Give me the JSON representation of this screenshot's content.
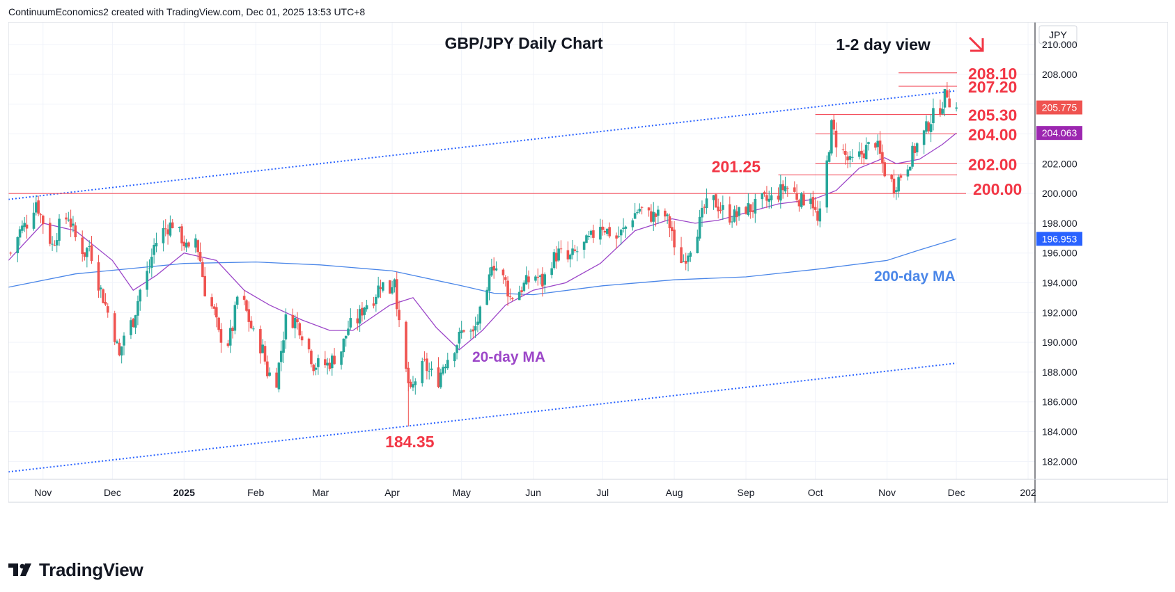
{
  "header": {
    "credit": "ContinuumEconomics2 created with TradingView.com, Dec 01, 2025 13:53 UTC+8"
  },
  "footer": {
    "brand": "TradingView",
    "logo_icon": "tradingview-logo-icon"
  },
  "colors": {
    "up": "#26a69a",
    "down": "#ef5350",
    "annotation_red": "#f23645",
    "ma20": "#9c46c8",
    "ma200": "#4a86e8",
    "trendline": "#2962ff",
    "price_badge": "#ef5350",
    "ma20_badge": "#9c27b0",
    "ma200_badge": "#2962ff"
  },
  "chart_data": {
    "type": "candlestick",
    "title": "GBP/JPY Daily Chart",
    "subtitle": "1-2 day view",
    "direction_icon": "arrow-down-right-icon",
    "currency": "JPY",
    "ylim": [
      180.8,
      211.5
    ],
    "y_ticks": [
      "210.000",
      "208.000",
      "206.000",
      "204.000",
      "202.000",
      "200.000",
      "198.000",
      "196.000",
      "194.000",
      "192.000",
      "190.000",
      "188.000",
      "186.000",
      "184.000",
      "182.000"
    ],
    "x_ticks": [
      {
        "label": "Nov",
        "date": "2024-11-01"
      },
      {
        "label": "Dec",
        "date": "2024-12-01"
      },
      {
        "label": "2025",
        "date": "2025-01-01"
      },
      {
        "label": "Feb",
        "date": "2025-02-01"
      },
      {
        "label": "Mar",
        "date": "2025-03-01"
      },
      {
        "label": "Apr",
        "date": "2025-04-01"
      },
      {
        "label": "May",
        "date": "2025-05-01"
      },
      {
        "label": "Jun",
        "date": "2025-06-01"
      },
      {
        "label": "Jul",
        "date": "2025-07-01"
      },
      {
        "label": "Aug",
        "date": "2025-08-01"
      },
      {
        "label": "Sep",
        "date": "2025-09-01"
      },
      {
        "label": "Oct",
        "date": "2025-10-01"
      },
      {
        "label": "Nov",
        "date": "2025-11-01"
      },
      {
        "label": "Dec",
        "date": "2025-12-01"
      },
      {
        "label": "202",
        "date": "2026-01-01"
      }
    ],
    "x_range": [
      "2024-10-17",
      "2026-01-04"
    ],
    "price_path": [
      [
        "2024-10-18",
        196.0
      ],
      [
        "2024-10-22",
        197.5
      ],
      [
        "2024-10-25",
        198.0
      ],
      [
        "2024-10-29",
        199.5
      ],
      [
        "2024-10-31",
        198.5
      ],
      [
        "2024-11-05",
        196.5
      ],
      [
        "2024-11-08",
        197.8
      ],
      [
        "2024-11-12",
        198.5
      ],
      [
        "2024-11-15",
        197.0
      ],
      [
        "2024-11-19",
        196.0
      ],
      [
        "2024-11-21",
        196.5
      ],
      [
        "2024-11-25",
        194.0
      ],
      [
        "2024-11-27",
        193.0
      ],
      [
        "2024-12-02",
        190.5
      ],
      [
        "2024-12-04",
        189.0
      ],
      [
        "2024-12-06",
        190.5
      ],
      [
        "2024-12-10",
        191.5
      ],
      [
        "2024-12-13",
        193.5
      ],
      [
        "2024-12-17",
        195.0
      ],
      [
        "2024-12-19",
        196.5
      ],
      [
        "2024-12-23",
        197.5
      ],
      [
        "2024-12-27",
        198.0
      ],
      [
        "2024-12-31",
        197.0
      ],
      [
        "2025-01-03",
        196.0
      ],
      [
        "2025-01-06",
        197.0
      ],
      [
        "2025-01-08",
        195.5
      ],
      [
        "2025-01-10",
        193.5
      ],
      [
        "2025-01-14",
        192.0
      ],
      [
        "2025-01-16",
        190.5
      ],
      [
        "2025-01-20",
        190.0
      ],
      [
        "2025-01-22",
        191.0
      ],
      [
        "2025-01-24",
        193.0
      ],
      [
        "2025-01-27",
        192.5
      ],
      [
        "2025-01-29",
        191.5
      ],
      [
        "2025-01-31",
        190.5
      ],
      [
        "2025-02-04",
        189.5
      ],
      [
        "2025-02-06",
        188.0
      ],
      [
        "2025-02-10",
        187.5
      ],
      [
        "2025-02-12",
        189.5
      ],
      [
        "2025-02-14",
        191.5
      ],
      [
        "2025-02-18",
        191.5
      ],
      [
        "2025-02-20",
        191.0
      ],
      [
        "2025-02-24",
        189.5
      ],
      [
        "2025-02-26",
        188.5
      ],
      [
        "2025-02-28",
        188.5
      ],
      [
        "2025-03-04",
        188.5
      ],
      [
        "2025-03-06",
        188.8
      ],
      [
        "2025-03-10",
        189.5
      ],
      [
        "2025-03-13",
        191.0
      ],
      [
        "2025-03-17",
        191.5
      ],
      [
        "2025-03-20",
        192.5
      ],
      [
        "2025-03-24",
        193.0
      ],
      [
        "2025-03-27",
        194.0
      ],
      [
        "2025-03-31",
        193.5
      ],
      [
        "2025-04-02",
        194.5
      ],
      [
        "2025-04-04",
        191.0
      ],
      [
        "2025-04-07",
        188.0
      ],
      [
        "2025-04-09",
        186.5
      ],
      [
        "2025-04-11",
        187.5
      ],
      [
        "2025-04-15",
        188.5
      ],
      [
        "2025-04-17",
        188.0
      ],
      [
        "2025-04-21",
        187.5
      ],
      [
        "2025-04-23",
        188.5
      ],
      [
        "2025-04-25",
        189.0
      ],
      [
        "2025-04-29",
        190.0
      ],
      [
        "2025-05-02",
        191.0
      ],
      [
        "2025-05-06",
        190.5
      ],
      [
        "2025-05-08",
        191.5
      ],
      [
        "2025-05-12",
        193.0
      ],
      [
        "2025-05-14",
        195.5
      ],
      [
        "2025-05-16",
        195.0
      ],
      [
        "2025-05-20",
        194.0
      ],
      [
        "2025-05-22",
        193.0
      ],
      [
        "2025-05-26",
        193.5
      ],
      [
        "2025-05-29",
        194.0
      ],
      [
        "2025-06-02",
        194.5
      ],
      [
        "2025-06-05",
        194.0
      ],
      [
        "2025-06-09",
        195.5
      ],
      [
        "2025-06-12",
        196.0
      ],
      [
        "2025-06-16",
        195.5
      ],
      [
        "2025-06-19",
        196.0
      ],
      [
        "2025-06-23",
        196.5
      ],
      [
        "2025-06-26",
        197.0
      ],
      [
        "2025-06-30",
        198.0
      ],
      [
        "2025-07-03",
        197.5
      ],
      [
        "2025-07-07",
        197.0
      ],
      [
        "2025-07-10",
        197.5
      ],
      [
        "2025-07-14",
        198.5
      ],
      [
        "2025-07-17",
        199.0
      ],
      [
        "2025-07-21",
        198.5
      ],
      [
        "2025-07-24",
        198.5
      ],
      [
        "2025-07-28",
        198.5
      ],
      [
        "2025-07-31",
        197.5
      ],
      [
        "2025-08-01",
        196.0
      ],
      [
        "2025-08-05",
        195.5
      ],
      [
        "2025-08-08",
        196.5
      ],
      [
        "2025-08-12",
        198.0
      ],
      [
        "2025-08-14",
        199.0
      ],
      [
        "2025-08-18",
        199.5
      ],
      [
        "2025-08-21",
        199.0
      ],
      [
        "2025-08-25",
        198.5
      ],
      [
        "2025-08-28",
        198.5
      ],
      [
        "2025-09-01",
        199.0
      ],
      [
        "2025-09-04",
        199.0
      ],
      [
        "2025-09-08",
        199.5
      ],
      [
        "2025-09-11",
        199.5
      ],
      [
        "2025-09-15",
        200.0
      ],
      [
        "2025-09-18",
        200.5
      ],
      [
        "2025-09-22",
        200.0
      ],
      [
        "2025-09-25",
        199.5
      ],
      [
        "2025-09-29",
        200.0
      ],
      [
        "2025-10-02",
        198.0
      ],
      [
        "2025-10-03",
        198.5
      ],
      [
        "2025-10-06",
        202.0
      ],
      [
        "2025-10-08",
        204.5
      ],
      [
        "2025-10-10",
        203.5
      ],
      [
        "2025-10-14",
        202.5
      ],
      [
        "2025-10-16",
        202.0
      ],
      [
        "2025-10-20",
        202.5
      ],
      [
        "2025-10-23",
        203.0
      ],
      [
        "2025-10-27",
        203.5
      ],
      [
        "2025-10-29",
        202.5
      ],
      [
        "2025-10-31",
        201.5
      ],
      [
        "2025-11-04",
        200.5
      ],
      [
        "2025-11-06",
        201.0
      ],
      [
        "2025-11-10",
        202.0
      ],
      [
        "2025-11-13",
        203.0
      ],
      [
        "2025-11-17",
        204.0
      ],
      [
        "2025-11-20",
        205.0
      ],
      [
        "2025-11-24",
        205.8
      ],
      [
        "2025-11-26",
        206.5
      ],
      [
        "2025-11-27",
        206.8
      ],
      [
        "2025-11-28",
        206.3
      ],
      [
        "2025-12-01",
        205.775
      ]
    ],
    "ma20_path": [
      [
        "2024-10-17",
        195.5
      ],
      [
        "2024-11-01",
        198.0
      ],
      [
        "2024-11-15",
        197.5
      ],
      [
        "2024-12-01",
        195.5
      ],
      [
        "2024-12-10",
        193.5
      ],
      [
        "2024-12-20",
        194.5
      ],
      [
        "2025-01-01",
        196.0
      ],
      [
        "2025-01-15",
        195.5
      ],
      [
        "2025-01-27",
        193.5
      ],
      [
        "2025-02-07",
        192.5
      ],
      [
        "2025-02-21",
        191.5
      ],
      [
        "2025-03-05",
        190.8
      ],
      [
        "2025-03-15",
        190.8
      ],
      [
        "2025-03-31",
        192.5
      ],
      [
        "2025-04-10",
        193.0
      ],
      [
        "2025-04-20",
        191.0
      ],
      [
        "2025-04-30",
        189.5
      ],
      [
        "2025-05-10",
        190.8
      ],
      [
        "2025-05-20",
        192.5
      ],
      [
        "2025-06-01",
        193.5
      ],
      [
        "2025-06-15",
        194.0
      ],
      [
        "2025-06-30",
        195.3
      ],
      [
        "2025-07-15",
        197.5
      ],
      [
        "2025-07-31",
        198.3
      ],
      [
        "2025-08-10",
        198.0
      ],
      [
        "2025-08-20",
        198.2
      ],
      [
        "2025-09-01",
        198.7
      ],
      [
        "2025-09-15",
        199.3
      ],
      [
        "2025-09-30",
        199.6
      ],
      [
        "2025-10-10",
        200.2
      ],
      [
        "2025-10-20",
        201.7
      ],
      [
        "2025-10-31",
        202.4
      ],
      [
        "2025-11-05",
        202.0
      ],
      [
        "2025-11-15",
        202.3
      ],
      [
        "2025-11-25",
        203.3
      ],
      [
        "2025-12-01",
        204.063
      ]
    ],
    "ma200_path": [
      [
        "2024-10-17",
        193.7
      ],
      [
        "2024-11-15",
        194.6
      ],
      [
        "2025-01-01",
        195.3
      ],
      [
        "2025-02-01",
        195.4
      ],
      [
        "2025-03-01",
        195.2
      ],
      [
        "2025-04-01",
        194.8
      ],
      [
        "2025-05-01",
        193.8
      ],
      [
        "2025-05-15",
        193.3
      ],
      [
        "2025-06-01",
        193.2
      ],
      [
        "2025-07-01",
        193.8
      ],
      [
        "2025-08-01",
        194.2
      ],
      [
        "2025-09-01",
        194.4
      ],
      [
        "2025-10-01",
        194.9
      ],
      [
        "2025-11-01",
        195.5
      ],
      [
        "2025-11-15",
        196.2
      ],
      [
        "2025-12-01",
        196.953
      ]
    ],
    "trendlines": [
      {
        "name": "upper-channel",
        "from": [
          "2024-10-17",
          199.6
        ],
        "to": [
          "2025-12-01",
          206.9
        ]
      },
      {
        "name": "lower-channel",
        "from": [
          "2024-10-17",
          181.3
        ],
        "to": [
          "2025-12-01",
          188.6
        ]
      }
    ],
    "levels": [
      {
        "label": "208.10",
        "value": 208.1,
        "from": "2025-11-06"
      },
      {
        "label": "207.20",
        "value": 207.2,
        "from": "2025-11-06"
      },
      {
        "label": "205.30",
        "value": 205.3,
        "from": "2025-10-01"
      },
      {
        "label": "204.00",
        "value": 204.0,
        "from": "2025-10-01"
      },
      {
        "label": "202.00",
        "value": 202.0,
        "from": "2025-10-01"
      },
      {
        "label": "201.25",
        "value": 201.25,
        "from": "2025-09-15"
      },
      {
        "label": "200.00",
        "value": 200.0,
        "from": "2024-10-17"
      }
    ],
    "low_annotation": {
      "label": "184.35",
      "value": 184.35,
      "date": "2025-04-08"
    },
    "ma_labels": {
      "ma20": "20-day MA",
      "ma200": "200-day MA"
    },
    "price_badges": [
      {
        "label": "205.775",
        "value": 205.775,
        "kind": "price"
      },
      {
        "label": "204.063",
        "value": 204.063,
        "kind": "ma20"
      },
      {
        "label": "196.953",
        "value": 196.953,
        "kind": "ma200"
      }
    ]
  }
}
